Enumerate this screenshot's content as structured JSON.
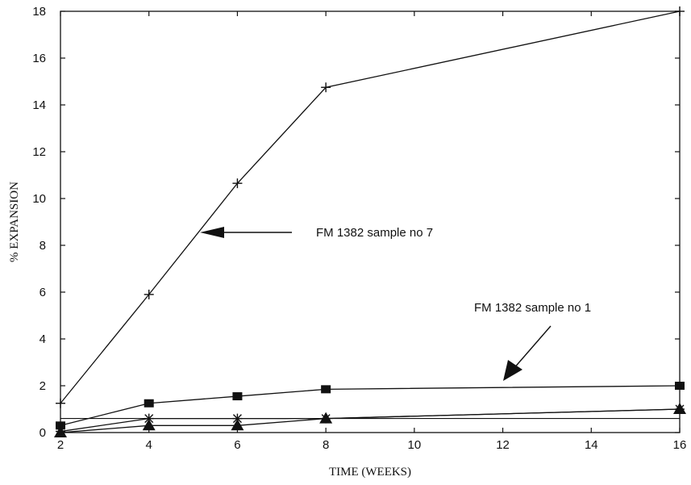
{
  "chart_data": {
    "type": "line",
    "title": "",
    "xlabel": "TIME (WEEKS)",
    "ylabel": "% EXPANSION",
    "x_ticks": [
      "2",
      "4",
      "6",
      "8",
      "10",
      "12",
      "14",
      "16"
    ],
    "y_ticks": [
      "0",
      "2",
      "4",
      "6",
      "8",
      "10",
      "12",
      "14",
      "16",
      "18"
    ],
    "xlim": [
      2,
      16
    ],
    "ylim": [
      0,
      18
    ],
    "grid": false,
    "series": [
      {
        "marker": "plus",
        "x": [
          2,
          4,
          6,
          8,
          16
        ],
        "values": [
          1.25,
          5.9,
          10.65,
          14.75,
          18.0
        ]
      },
      {
        "marker": "square",
        "x": [
          2,
          4,
          6,
          8,
          16
        ],
        "values": [
          0.3,
          1.25,
          1.55,
          1.85,
          2.0
        ]
      },
      {
        "marker": "asterisk",
        "x": [
          2,
          4,
          6,
          8,
          16
        ],
        "values": [
          0.05,
          0.6,
          0.6,
          0.6,
          1.0
        ]
      },
      {
        "marker": "triangle",
        "x": [
          2,
          4,
          6,
          8,
          16
        ],
        "values": [
          0.0,
          0.3,
          0.3,
          0.6,
          1.0
        ]
      }
    ],
    "reference_lines": [
      {
        "y": 0.6
      }
    ],
    "annotations": [
      {
        "text": "FM 1382 sample no 7",
        "target_series": 0
      },
      {
        "text": "FM 1382 sample no 1",
        "target_series": 1
      }
    ]
  }
}
